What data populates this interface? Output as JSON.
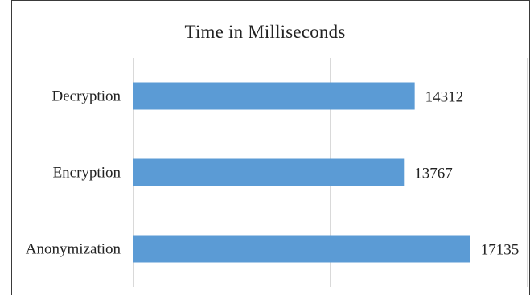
{
  "chart_data": {
    "type": "bar",
    "orientation": "horizontal",
    "title": "Time in Milliseconds",
    "categories": [
      "Decryption",
      "Encryption",
      "Anonymization"
    ],
    "values": [
      14312,
      13767,
      17135
    ],
    "xlim": [
      0,
      20000
    ],
    "x_gridline_step": 5000,
    "grid": "vertical",
    "legend": "none",
    "bar_color": "#5b9bd5",
    "gridline_color": "#d9d9d9",
    "data_labels": true
  }
}
